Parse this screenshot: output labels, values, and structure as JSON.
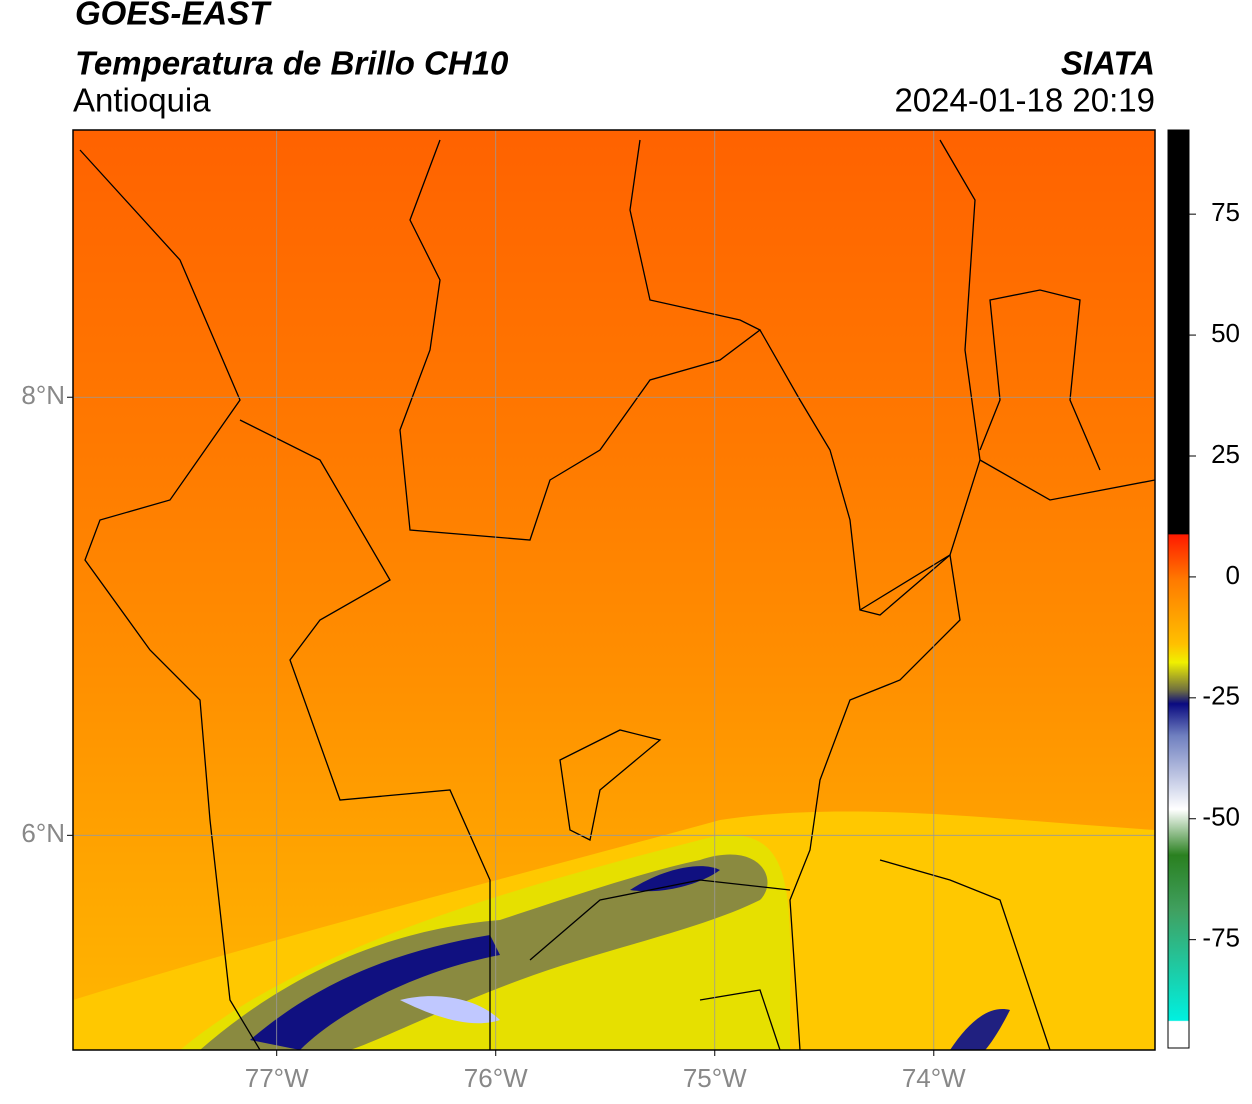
{
  "header": {
    "line1": "GOES-EAST",
    "line2": "Temperatura de Brillo CH10",
    "line3": "Antioquia",
    "source": "SIATA",
    "datetime": "2024-01-18 20:19"
  },
  "map": {
    "xlim": [
      -77.93,
      -72.99
    ],
    "ylim": [
      5.02,
      9.22
    ],
    "xticks": [
      {
        "value": -77,
        "label": "77°W"
      },
      {
        "value": -76,
        "label": "76°W"
      },
      {
        "value": -75,
        "label": "75°W"
      },
      {
        "value": -74,
        "label": "74°W"
      }
    ],
    "yticks": [
      {
        "value": 8,
        "label": "8°N"
      },
      {
        "value": 6,
        "label": "6°N"
      }
    ]
  },
  "colorbar": {
    "lim": [
      -97.4,
      92.4
    ],
    "ticks": [
      75,
      50,
      25,
      0,
      -25,
      -50,
      -75
    ]
  }
}
